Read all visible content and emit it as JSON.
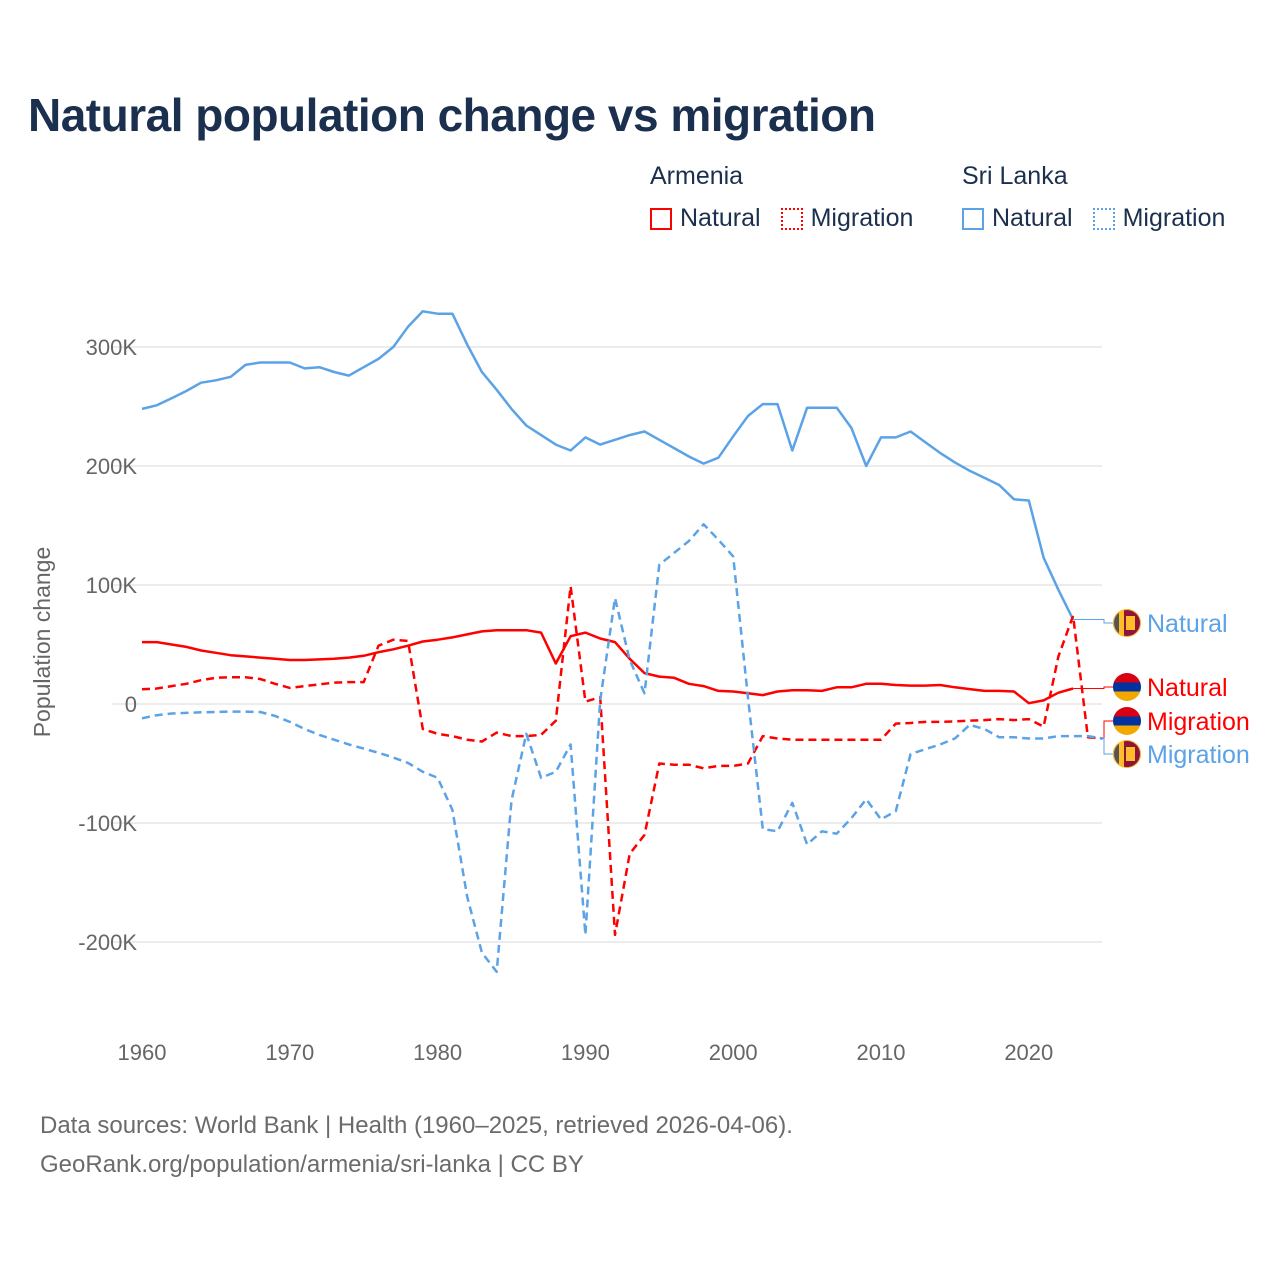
{
  "title": "Natural population change vs migration",
  "legend": {
    "groups": [
      {
        "name": "Armenia",
        "color": "#ff0000",
        "items": [
          {
            "label": "Natural",
            "style": "solid"
          },
          {
            "label": "Migration",
            "style": "dotted"
          }
        ]
      },
      {
        "name": "Sri Lanka",
        "color": "#5ba3e6",
        "items": [
          {
            "label": "Natural",
            "style": "solid"
          },
          {
            "label": "Migration",
            "style": "dotted"
          }
        ]
      }
    ]
  },
  "footer": {
    "line1": "Data sources: World Bank | Health (1960–2025, retrieved 2026-04-06).",
    "line2": "GeoRank.org/population/armenia/sri-lanka | CC BY"
  },
  "chart_data": {
    "type": "line",
    "title": "Natural population change vs migration",
    "xlabel": "",
    "ylabel": "Population change",
    "xlim": [
      1960,
      2025
    ],
    "ylim": [
      -250000,
      340000
    ],
    "yticks": [
      300000,
      200000,
      100000,
      0,
      -100000,
      -200000
    ],
    "ytick_labels": [
      "300K",
      "200K",
      "100K",
      "0",
      "-100K",
      "-200K"
    ],
    "xticks": [
      1960,
      1970,
      1980,
      1990,
      2000,
      2010,
      2020
    ],
    "xtick_labels": [
      "1960",
      "1970",
      "1980",
      "1990",
      "2000",
      "2010",
      "2020"
    ],
    "grid": true,
    "x_start": 1960,
    "series": [
      {
        "name": "Sri Lanka Natural",
        "end_label": "Natural",
        "country": "Sri Lanka",
        "color": "#5ba3e6",
        "dash": "solid",
        "values_k": [
          248,
          251,
          257,
          263,
          270,
          272,
          275,
          285,
          287,
          287,
          287,
          282,
          283,
          279,
          276,
          283,
          290,
          300,
          317,
          330,
          328,
          328,
          302,
          279,
          264,
          248,
          234,
          226,
          218,
          213,
          224,
          218,
          222,
          226,
          229,
          222,
          215,
          208,
          202,
          207,
          225,
          242,
          252,
          252,
          213,
          249,
          249,
          249,
          232,
          200,
          224,
          224,
          229,
          220,
          211,
          203,
          196,
          190,
          184,
          172,
          171,
          123,
          96,
          71,
          null,
          null
        ]
      },
      {
        "name": "Armenia Natural",
        "end_label": "Natural",
        "country": "Armenia",
        "color": "#ff0000",
        "dash": "solid",
        "values_k": [
          52,
          52,
          50,
          48,
          45,
          43,
          41,
          40,
          39,
          38,
          37,
          37,
          37.5,
          38,
          39,
          40.5,
          43.5,
          46,
          49,
          52.5,
          54,
          56,
          58.5,
          61,
          62,
          62,
          62,
          60,
          34,
          57,
          60,
          55,
          52,
          38,
          26,
          23,
          22,
          17,
          15,
          11,
          10.5,
          9,
          7.5,
          10.5,
          11.5,
          11.5,
          11,
          14,
          14,
          17,
          17,
          16,
          15.5,
          15.5,
          16,
          14,
          12.5,
          11,
          11,
          10.5,
          0.7,
          3,
          9.5,
          13,
          null,
          null
        ]
      },
      {
        "name": "Armenia Migration",
        "end_label": "Migration",
        "country": "Armenia",
        "color": "#ff0000",
        "dash": "dashed",
        "values_k": [
          12.4,
          13,
          15,
          17,
          20,
          22,
          22.5,
          22.5,
          21,
          17,
          13.5,
          15,
          16.5,
          18,
          18.4,
          18.4,
          49,
          54,
          53,
          -21,
          -25,
          -27,
          -30,
          -31.5,
          -24,
          -27,
          -27,
          -26,
          -14,
          99,
          2,
          5.6,
          -194,
          -126,
          -110,
          -50,
          -51,
          -51,
          -54,
          -52,
          -52,
          -50,
          -27,
          -29,
          -30,
          -30,
          -30,
          -30,
          -30,
          -30,
          -30,
          -16.5,
          -16,
          -15,
          -15,
          -14.6,
          -14,
          -13.5,
          -12.7,
          -13.5,
          -12.7,
          -19,
          40,
          74,
          -28,
          -29
        ]
      },
      {
        "name": "Sri Lanka Migration",
        "end_label": "Migration",
        "country": "Sri Lanka",
        "color": "#5ba3e6",
        "dash": "dashed",
        "values_k": [
          -12,
          -9.4,
          -8,
          -7.5,
          -7,
          -6.7,
          -6.4,
          -6.4,
          -6.7,
          -10,
          -15,
          -21,
          -26,
          -30,
          -34,
          -37.5,
          -41,
          -45,
          -49.5,
          -57,
          -62,
          -89,
          -162,
          -209,
          -225,
          -81,
          -25,
          -62,
          -57,
          -34,
          -194,
          3,
          89,
          37,
          9,
          117,
          127,
          137,
          151,
          138,
          124,
          5,
          -105,
          -107,
          -83,
          -118,
          -107,
          -109,
          -96,
          -80,
          -97,
          -90,
          -42,
          -38,
          -34,
          -29,
          -17.6,
          -21,
          -28,
          -28,
          -29,
          -29,
          -27,
          -27,
          -27,
          -29
        ]
      }
    ]
  }
}
